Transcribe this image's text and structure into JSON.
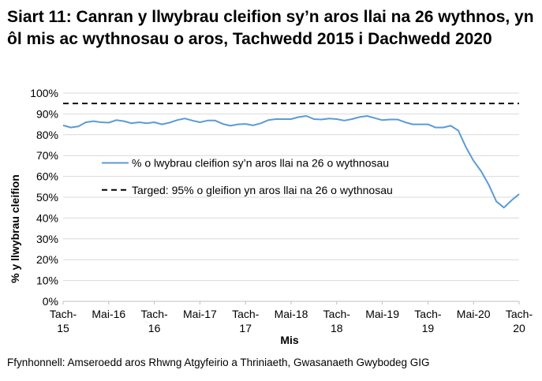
{
  "chart_data": {
    "type": "line",
    "title": "Siart 11: Canran y llwybrau cleifion sy’n aros llai na 26 wythnos, yn ôl mis ac wythnosau o aros, Tachwedd 2015 i Dachwedd 2020",
    "xlabel": "Mis",
    "ylabel": "% y llwybrau cleifion",
    "ylim": [
      0,
      100
    ],
    "yticks": [
      "0%",
      "10%",
      "20%",
      "30%",
      "40%",
      "50%",
      "60%",
      "70%",
      "80%",
      "90%",
      "100%"
    ],
    "xticks": [
      {
        "index": 0,
        "line1": "Tach-",
        "line2": "15"
      },
      {
        "index": 6,
        "line1": "Mai-16",
        "line2": ""
      },
      {
        "index": 12,
        "line1": "Tach-",
        "line2": "16"
      },
      {
        "index": 18,
        "line1": "Mai-17",
        "line2": ""
      },
      {
        "index": 24,
        "line1": "Tach-",
        "line2": "17"
      },
      {
        "index": 30,
        "line1": "Mai-18",
        "line2": ""
      },
      {
        "index": 36,
        "line1": "Tach-",
        "line2": "18"
      },
      {
        "index": 42,
        "line1": "Mai-19",
        "line2": ""
      },
      {
        "index": 48,
        "line1": "Tach-",
        "line2": "19"
      },
      {
        "index": 54,
        "line1": "Mai-20",
        "line2": ""
      },
      {
        "index": 60,
        "line1": "Tach-",
        "line2": "20"
      }
    ],
    "grid": true,
    "legend_position": "center-left inside plot",
    "series": [
      {
        "name": "% o lwybrau cleifion sy’n aros llai na 26 o wythnosau",
        "color": "#5b9bd5",
        "style": "solid",
        "values": [
          84.5,
          83.5,
          84.0,
          86.0,
          86.5,
          86.0,
          85.8,
          87.0,
          86.5,
          85.5,
          86.0,
          85.5,
          86.0,
          85.0,
          85.8,
          87.0,
          87.8,
          86.8,
          86.0,
          86.8,
          86.8,
          85.2,
          84.3,
          85.0,
          85.2,
          84.5,
          85.5,
          87.0,
          87.5,
          87.5,
          87.5,
          88.5,
          89.0,
          87.5,
          87.3,
          87.8,
          87.5,
          86.8,
          87.5,
          88.5,
          89.0,
          88.0,
          87.0,
          87.3,
          87.3,
          86.0,
          85.0,
          85.0,
          85.0,
          83.5,
          83.5,
          84.3,
          82.0,
          74.0,
          67.5,
          62.5,
          56.0,
          48.0,
          45.0,
          48.5,
          51.5
        ]
      },
      {
        "name": "Targed: 95% o gleifion yn aros llai na 26 o wythnosau",
        "color": "#000000",
        "style": "dashed",
        "values": [
          95,
          95
        ]
      }
    ]
  },
  "source": "Ffynhonnell: Amseroedd aros Rhwng Atgyfeirio a Thriniaeth, Gwasanaeth Gwybodeg GIG"
}
